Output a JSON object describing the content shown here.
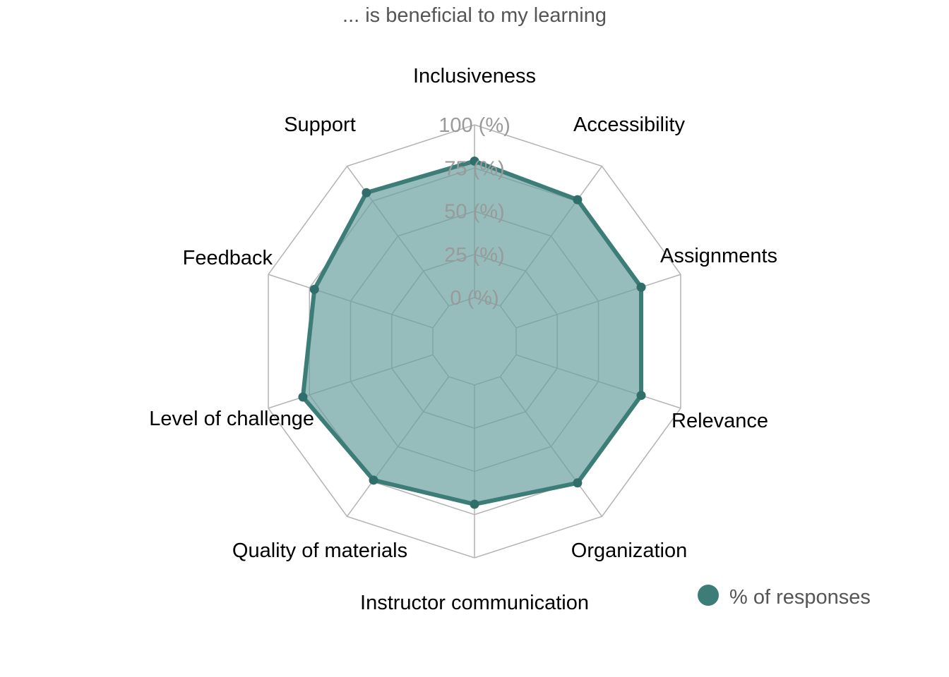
{
  "chart_data": {
    "type": "radar",
    "title": "... is beneficial to my learning",
    "categories": [
      "Inclusiveness",
      "Accessibility",
      "Assignments",
      "Relevance",
      "Organization",
      "Instructor communication",
      "Quality of materials",
      "Level of challenge",
      "Feedback",
      "Support"
    ],
    "series": [
      {
        "name": "% of responses",
        "values": [
          79,
          76,
          76,
          76,
          76,
          69,
          74,
          79,
          72,
          81
        ]
      }
    ],
    "rlim": [
      0,
      100
    ],
    "ticks": [
      0,
      25,
      50,
      75,
      100
    ],
    "tick_labels": [
      "0 (%)",
      "25 (%)",
      "50 (%)",
      "75 (%)",
      "100 (%)"
    ],
    "grid": true,
    "legend_position": "bottom-right",
    "colors": {
      "series_line": "#3d7d78",
      "series_fill": "#6a9fa0",
      "grid": "#b3b3b3"
    }
  }
}
